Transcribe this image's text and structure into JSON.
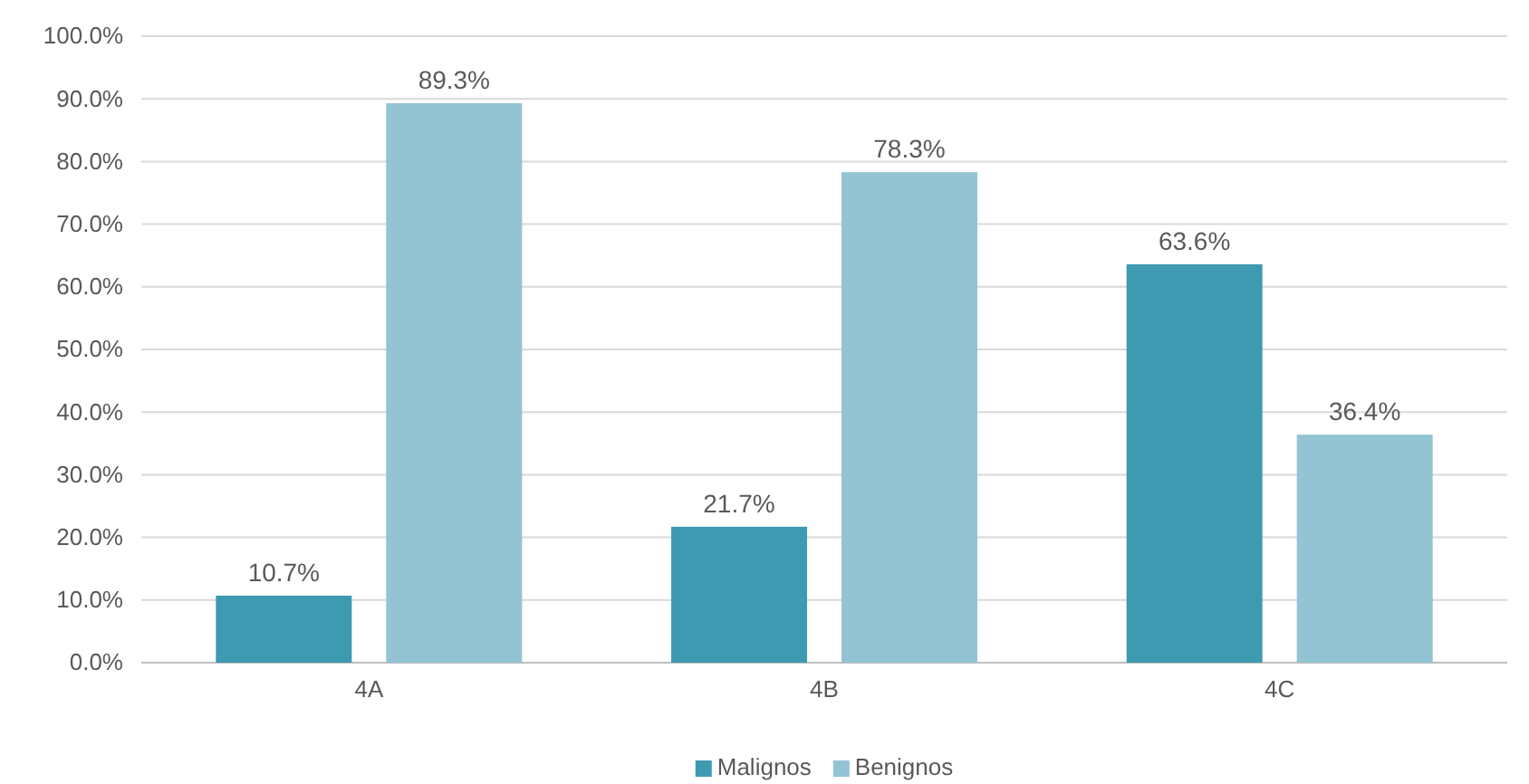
{
  "chart_data": {
    "type": "bar",
    "categories": [
      "4A",
      "4B",
      "4C"
    ],
    "series": [
      {
        "name": "Malignos",
        "color": "#3e9ab0",
        "values": [
          10.7,
          21.7,
          63.6
        ],
        "value_labels": [
          "10.7%",
          "21.7%",
          "63.6%"
        ]
      },
      {
        "name": "Benignos",
        "color": "#92c4d4",
        "values": [
          89.3,
          78.3,
          36.4
        ],
        "value_labels": [
          "89.3%",
          "78.3%",
          "36.4%"
        ]
      }
    ],
    "ylim": [
      0,
      100
    ],
    "yticks": [
      {
        "value": 0,
        "label": "0.0%"
      },
      {
        "value": 10,
        "label": "10.0%"
      },
      {
        "value": 20,
        "label": "20.0%"
      },
      {
        "value": 30,
        "label": "30.0%"
      },
      {
        "value": 40,
        "label": "40.0%"
      },
      {
        "value": 50,
        "label": "50.0%"
      },
      {
        "value": 60,
        "label": "60.0%"
      },
      {
        "value": 70,
        "label": "70.0%"
      },
      {
        "value": 80,
        "label": "80.0%"
      },
      {
        "value": 90,
        "label": "90.0%"
      },
      {
        "value": 100,
        "label": "100.0%"
      }
    ],
    "grid": "y",
    "legend": "bottom"
  }
}
